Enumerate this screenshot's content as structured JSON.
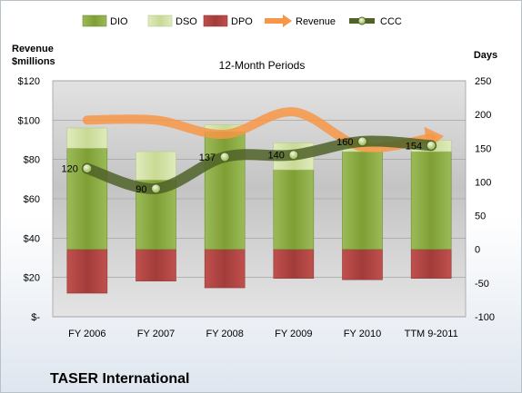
{
  "chart_data": {
    "type": "bar",
    "title": "12-Month Periods",
    "company": "TASER International",
    "left_axis_title_line1": "Revenue",
    "left_axis_title_line2": "$millions",
    "right_axis_title": "Days",
    "categories": [
      "FY 2006",
      "FY 2007",
      "FY 2008",
      "FY 2009",
      "FY 2010",
      "TTM 9-2011"
    ],
    "left_ticks": [
      "$-",
      "$20",
      "$40",
      "$60",
      "$80",
      "$100",
      "$120"
    ],
    "left_ylim": [
      0,
      120
    ],
    "right_ticks": [
      "-100",
      "-50",
      "0",
      "50",
      "100",
      "150",
      "200",
      "250"
    ],
    "right_ylim": [
      -100,
      250
    ],
    "series": [
      {
        "name": "DIO",
        "axis": "right",
        "values": [
          150,
          103,
          175,
          118,
          145,
          145
        ]
      },
      {
        "name": "DSO",
        "axis": "right",
        "values": [
          30,
          42,
          10,
          40,
          20,
          17
        ]
      },
      {
        "name": "DPO",
        "axis": "right",
        "values": [
          -65,
          -47,
          -57,
          -43,
          -45,
          -43
        ]
      },
      {
        "name": "Revenue",
        "axis": "left",
        "values": [
          100,
          100,
          92.8,
          104.2,
          86.4,
          91
        ]
      },
      {
        "name": "CCC",
        "axis": "right",
        "values": [
          120,
          90,
          137,
          140,
          160,
          154
        ],
        "labels": [
          "120",
          "90",
          "137",
          "140",
          "160",
          "154"
        ]
      }
    ],
    "legend": [
      "DIO",
      "DSO",
      "DPO",
      "Revenue",
      "CCC"
    ],
    "legend_position": "top",
    "colors": {
      "DIO": "#8aad3a",
      "DSO": "#d3e3a2",
      "DPO": "#c0504d",
      "Revenue": "#f79646",
      "CCC": "#4f6228"
    }
  }
}
